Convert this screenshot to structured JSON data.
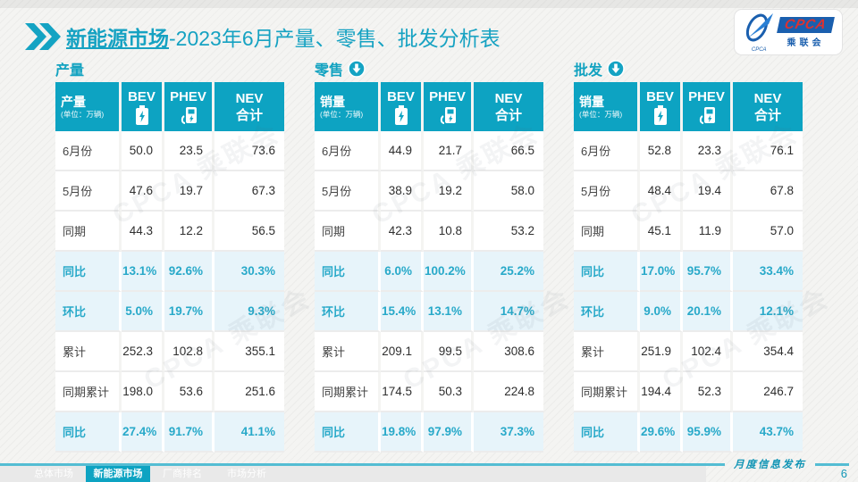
{
  "title": {
    "highlight": "新能源市场",
    "rest": "-2023年6月产量、零售、批发分析表"
  },
  "logo": {
    "cpca": "CPCA",
    "sub": "乘联会",
    "swoosh_icon": "cpca-swoosh-emblem"
  },
  "icons": {
    "title_chevrons": "double-chevron-right",
    "bev": "battery-icon",
    "phev": "charger-icon",
    "section_arrow": "circle-down-arrow-icon"
  },
  "colors": {
    "accent": "#0da3c2",
    "highlight_bg": "#e7f4fa",
    "highlight_text": "#28a9c9",
    "logo_blue": "#1a5fae",
    "logo_red": "#e0312e"
  },
  "watermark": "CPCA 乘联会",
  "tables": [
    {
      "section": "产量",
      "has_arrow": false,
      "label": "产量",
      "unit": "(单位：万辆)",
      "columns": [
        "BEV",
        "PHEV",
        "NEV\n合计"
      ],
      "rows": [
        {
          "label": "6月份",
          "values": [
            "50.0",
            "23.5",
            "73.6"
          ],
          "highlight": false
        },
        {
          "label": "5月份",
          "values": [
            "47.6",
            "19.7",
            "67.3"
          ],
          "highlight": false
        },
        {
          "label": "同期",
          "values": [
            "44.3",
            "12.2",
            "56.5"
          ],
          "highlight": false
        },
        {
          "label": "同比",
          "values": [
            "13.1%",
            "92.6%",
            "30.3%"
          ],
          "highlight": true
        },
        {
          "label": "环比",
          "values": [
            "5.0%",
            "19.7%",
            "9.3%"
          ],
          "highlight": true
        },
        {
          "label": "累计",
          "values": [
            "252.3",
            "102.8",
            "355.1"
          ],
          "highlight": false
        },
        {
          "label": "同期累计",
          "values": [
            "198.0",
            "53.6",
            "251.6"
          ],
          "highlight": false
        },
        {
          "label": "同比",
          "values": [
            "27.4%",
            "91.7%",
            "41.1%"
          ],
          "highlight": true
        }
      ]
    },
    {
      "section": "零售",
      "has_arrow": true,
      "label": "销量",
      "unit": "(单位：万辆)",
      "columns": [
        "BEV",
        "PHEV",
        "NEV\n合计"
      ],
      "rows": [
        {
          "label": "6月份",
          "values": [
            "44.9",
            "21.7",
            "66.5"
          ],
          "highlight": false
        },
        {
          "label": "5月份",
          "values": [
            "38.9",
            "19.2",
            "58.0"
          ],
          "highlight": false
        },
        {
          "label": "同期",
          "values": [
            "42.3",
            "10.8",
            "53.2"
          ],
          "highlight": false
        },
        {
          "label": "同比",
          "values": [
            "6.0%",
            "100.2%",
            "25.2%"
          ],
          "highlight": true
        },
        {
          "label": "环比",
          "values": [
            "15.4%",
            "13.1%",
            "14.7%"
          ],
          "highlight": true
        },
        {
          "label": "累计",
          "values": [
            "209.1",
            "99.5",
            "308.6"
          ],
          "highlight": false
        },
        {
          "label": "同期累计",
          "values": [
            "174.5",
            "50.3",
            "224.8"
          ],
          "highlight": false
        },
        {
          "label": "同比",
          "values": [
            "19.8%",
            "97.9%",
            "37.3%"
          ],
          "highlight": true
        }
      ]
    },
    {
      "section": "批发",
      "has_arrow": true,
      "label": "销量",
      "unit": "(单位：万辆)",
      "columns": [
        "BEV",
        "PHEV",
        "NEV\n合计"
      ],
      "rows": [
        {
          "label": "6月份",
          "values": [
            "52.8",
            "23.3",
            "76.1"
          ],
          "highlight": false
        },
        {
          "label": "5月份",
          "values": [
            "48.4",
            "19.4",
            "67.8"
          ],
          "highlight": false
        },
        {
          "label": "同期",
          "values": [
            "45.1",
            "11.9",
            "57.0"
          ],
          "highlight": false
        },
        {
          "label": "同比",
          "values": [
            "17.0%",
            "95.7%",
            "33.4%"
          ],
          "highlight": true
        },
        {
          "label": "环比",
          "values": [
            "9.0%",
            "20.1%",
            "12.1%"
          ],
          "highlight": true
        },
        {
          "label": "累计",
          "values": [
            "251.9",
            "102.4",
            "354.4"
          ],
          "highlight": false
        },
        {
          "label": "同期累计",
          "values": [
            "194.4",
            "52.3",
            "246.7"
          ],
          "highlight": false
        },
        {
          "label": "同比",
          "values": [
            "29.6%",
            "95.9%",
            "43.7%"
          ],
          "highlight": true
        }
      ]
    }
  ],
  "footer": {
    "tabs": [
      {
        "label": "总体市场",
        "active": false
      },
      {
        "label": "新能源市场",
        "active": true
      },
      {
        "label": "厂商排名",
        "active": false
      },
      {
        "label": "市场分析",
        "active": false
      }
    ],
    "note": "月度信息发布",
    "page": "6"
  }
}
